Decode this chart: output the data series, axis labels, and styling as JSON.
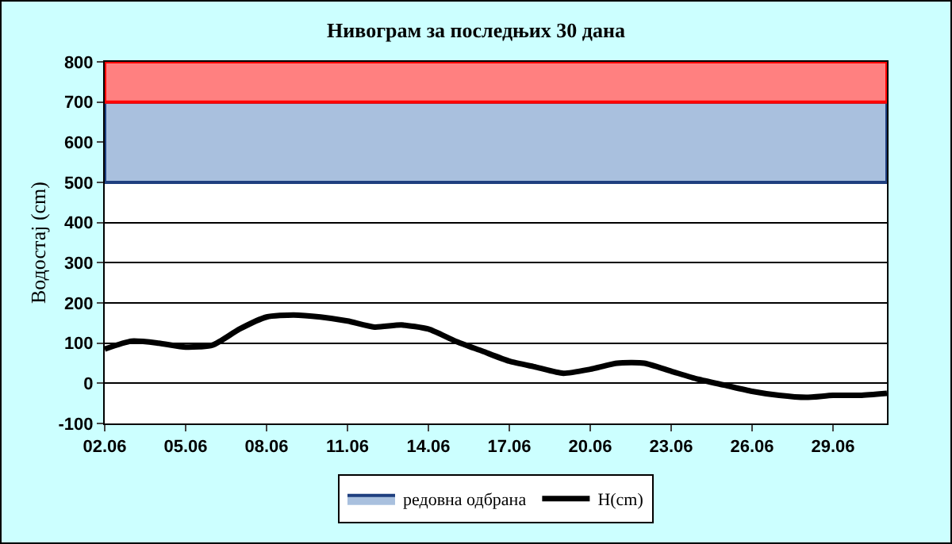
{
  "chart_data": {
    "type": "line",
    "title": "Нивограм за последњих 30 дана",
    "ylabel": "Водостај (cm)",
    "categories": [
      "02.06",
      null,
      null,
      "05.06",
      null,
      null,
      "08.06",
      null,
      null,
      "11.06",
      null,
      null,
      "14.06",
      null,
      null,
      "17.06",
      null,
      null,
      "20.06",
      null,
      null,
      "23.06",
      null,
      null,
      "26.06",
      null,
      null,
      "29.06",
      null,
      null
    ],
    "series": [
      {
        "name": "H(cm)",
        "color": "#000000",
        "values": [
          85,
          105,
          100,
          90,
          95,
          135,
          165,
          170,
          165,
          155,
          140,
          145,
          135,
          105,
          80,
          55,
          40,
          25,
          35,
          50,
          50,
          30,
          10,
          -5,
          -20,
          -30,
          -35,
          -30,
          -30,
          -25
        ]
      }
    ],
    "ylim": [
      -100,
      800
    ],
    "yticks": [
      -100,
      0,
      100,
      200,
      300,
      400,
      500,
      600,
      700,
      800
    ],
    "grid": "y",
    "legend": "bottom",
    "marker": "none",
    "line_style": "solid",
    "bands": [
      {
        "axis": "y",
        "from": 500,
        "to": 700,
        "label": "редовна одбрана",
        "color": "#a9c0de"
      },
      {
        "axis": "y",
        "from": 700,
        "to": 800,
        "label": null,
        "color": "#ff8080"
      }
    ]
  }
}
